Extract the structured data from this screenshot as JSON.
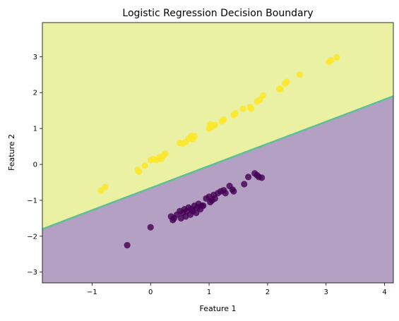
{
  "chart_data": {
    "type": "scatter",
    "title": "Logistic Regression Decision Boundary",
    "xlabel": "Feature 1",
    "ylabel": "Feature 2",
    "xlim": [
      -1.85,
      4.15
    ],
    "ylim": [
      -3.3,
      3.95
    ],
    "xticks": [
      -1,
      0,
      1,
      2,
      3,
      4
    ],
    "yticks": [
      -3,
      -2,
      -1,
      0,
      1,
      2,
      3
    ],
    "xtick_labels": [
      "−1",
      "0",
      "1",
      "2",
      "3",
      "4"
    ],
    "ytick_labels": [
      "−3",
      "−2",
      "−1",
      "0",
      "1",
      "2",
      "3"
    ],
    "grid": false,
    "decision_boundary": {
      "x": [
        -1.85,
        4.15
      ],
      "y": [
        -1.8,
        1.9
      ]
    },
    "region_colors": {
      "class_1": "#ebf1a2",
      "class_0": "#b3a0c3",
      "boundary": "#5fbf97"
    },
    "series": [
      {
        "class": 1,
        "color": "#fde725",
        "x": [
          -0.85,
          -0.78,
          -0.22,
          -0.2,
          -0.1,
          0.0,
          0.05,
          0.1,
          0.15,
          0.18,
          0.22,
          0.25,
          0.5,
          0.55,
          0.6,
          0.65,
          0.7,
          0.72,
          0.75,
          1.0,
          1.02,
          1.05,
          1.1,
          1.22,
          1.25,
          1.42,
          1.45,
          1.58,
          1.7,
          1.72,
          1.82,
          1.87,
          1.92,
          2.2,
          2.22,
          2.3,
          2.33,
          2.55,
          3.05,
          3.08,
          3.18
        ],
        "y": [
          -0.73,
          -0.63,
          -0.15,
          -0.2,
          -0.03,
          0.12,
          0.15,
          0.12,
          0.2,
          0.15,
          0.25,
          0.3,
          0.6,
          0.58,
          0.62,
          0.72,
          0.8,
          0.7,
          0.78,
          1.0,
          1.12,
          1.05,
          1.1,
          1.2,
          1.25,
          1.38,
          1.42,
          1.55,
          1.6,
          1.55,
          1.75,
          1.8,
          1.92,
          2.1,
          2.1,
          2.25,
          2.3,
          2.5,
          2.85,
          2.9,
          2.98
        ]
      },
      {
        "class": 0,
        "color": "#440154",
        "x": [
          -0.4,
          0.0,
          0.35,
          0.38,
          0.4,
          0.45,
          0.5,
          0.52,
          0.55,
          0.58,
          0.6,
          0.62,
          0.65,
          0.68,
          0.7,
          0.72,
          0.75,
          0.78,
          0.8,
          0.82,
          0.85,
          0.88,
          0.9,
          0.95,
          1.0,
          1.02,
          1.05,
          1.08,
          1.1,
          1.15,
          1.2,
          1.25,
          1.28,
          1.35,
          1.4,
          1.42,
          1.6,
          1.67,
          1.78,
          1.82,
          1.85,
          1.9
        ],
        "y": [
          -2.25,
          -1.75,
          -1.45,
          -1.55,
          -1.5,
          -1.4,
          -1.3,
          -1.5,
          -1.35,
          -1.25,
          -1.45,
          -1.3,
          -1.2,
          -1.4,
          -1.25,
          -1.3,
          -1.15,
          -1.35,
          -1.2,
          -1.1,
          -1.25,
          -1.15,
          -1.15,
          -0.95,
          -0.9,
          -1.05,
          -1.0,
          -0.85,
          -0.95,
          -0.8,
          -0.75,
          -0.72,
          -0.8,
          -0.6,
          -0.7,
          -0.75,
          -0.55,
          -0.35,
          -0.25,
          -0.3,
          -0.35,
          -0.37
        ]
      }
    ]
  }
}
